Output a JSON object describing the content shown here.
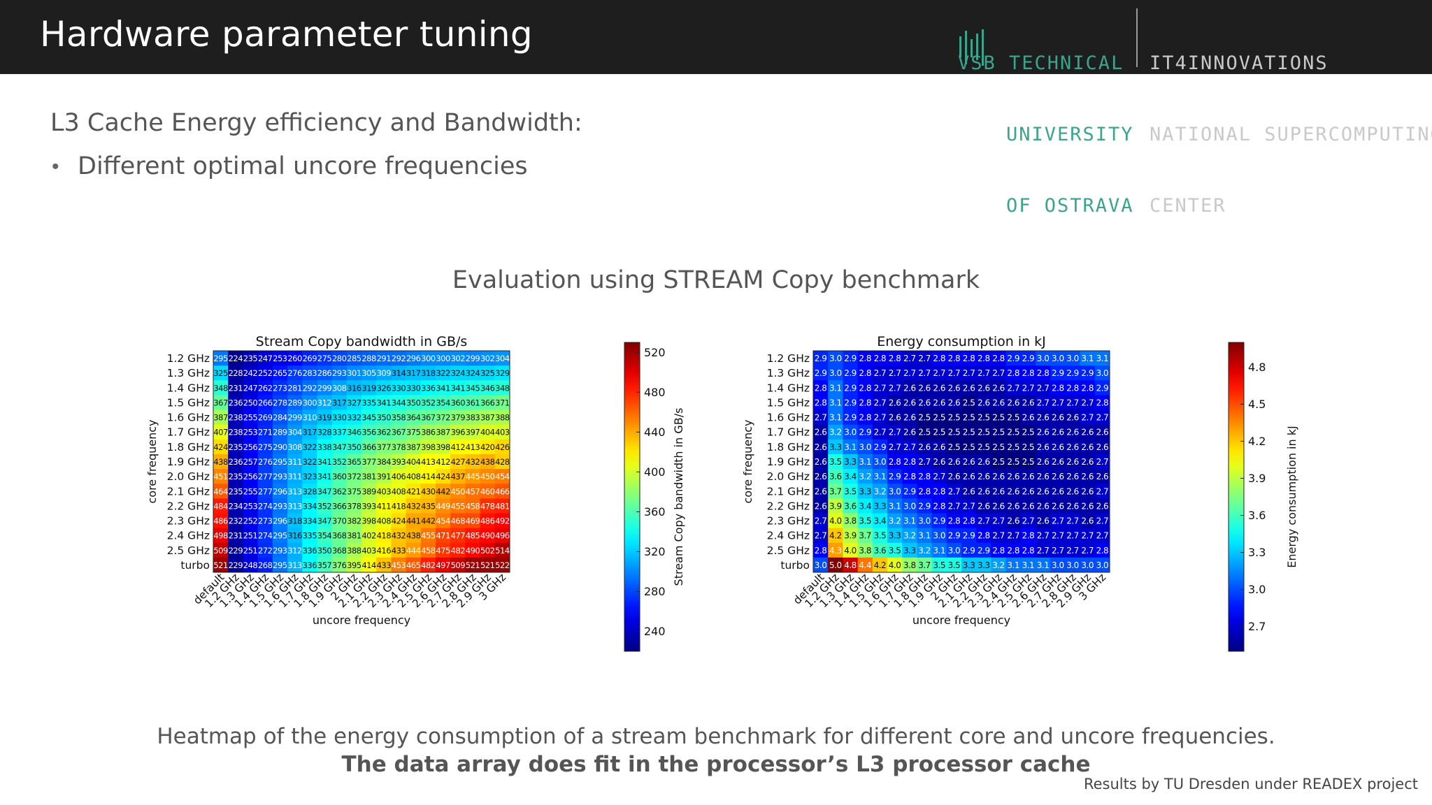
{
  "header": {
    "title": "Hardware parameter tuning",
    "logo_vsb": [
      "VSB TECHNICAL",
      "UNIVERSITY",
      "OF OSTRAVA"
    ],
    "logo_it4i": [
      "IT4INNOVATIONS",
      "NATIONAL SUPERCOMPUTING",
      "CENTER"
    ],
    "background": "#1e1e1e",
    "vsb_color": "#3aa58d"
  },
  "content": {
    "subtitle": "L3 Cache Energy efficiency and Bandwidth:",
    "bullet": "Different optimal uncore frequencies",
    "eval_title": "Evaluation using STREAM Copy benchmark",
    "caption_line1": "Heatmap of the energy consumption of a stream benchmark for different core and uncore frequencies.",
    "caption_line2": "The data array does fit in the processor’s L3 processor cache",
    "credit": "Results by TU Dresden under READEX project"
  },
  "chart_data": [
    {
      "type": "heatmap",
      "title": "Stream Copy bandwidth in GB/s",
      "xlabel": "uncore frequency",
      "ylabel": "core frequency",
      "colorbar_label": "Stream Copy bandwidth in GB/s",
      "colormap": "jet",
      "vmin": 220,
      "vmax": 530,
      "colorbar_ticks": [
        520,
        480,
        440,
        400,
        360,
        320,
        280,
        240
      ],
      "x_categories": [
        "default",
        "1.2 GHz",
        "1.3 GHz",
        "1.4 GHz",
        "1.5 GHz",
        "1.6 GHz",
        "1.7 GHz",
        "1.8 GHz",
        "1.9 GHz",
        "2 GHz",
        "2.1 GHz",
        "2.2 GHz",
        "2.3 GHz",
        "2.4 GHz",
        "2.5 GHz",
        "2.6 GHz",
        "2.7 GHz",
        "2.8 GHz",
        "2.9 GHz",
        "3 GHz"
      ],
      "y_categories": [
        "1.2 GHz",
        "1.3 GHz",
        "1.4 GHz",
        "1.5 GHz",
        "1.6 GHz",
        "1.7 GHz",
        "1.8 GHz",
        "1.9 GHz",
        "2.0 GHz",
        "2.1 GHz",
        "2.2 GHz",
        "2.3 GHz",
        "2.4 GHz",
        "2.5 GHz",
        "turbo"
      ],
      "values": [
        [
          295,
          224,
          235,
          247,
          253,
          260,
          269,
          275,
          280,
          285,
          288,
          291,
          292,
          296,
          300,
          300,
          302,
          299,
          302,
          304
        ],
        [
          325,
          228,
          242,
          252,
          265,
          276,
          283,
          286,
          293,
          301,
          305,
          309,
          314,
          317,
          318,
          322,
          324,
          324,
          325,
          329
        ],
        [
          348,
          231,
          247,
          262,
          273,
          281,
          292,
          299,
          308,
          316,
          319,
          326,
          330,
          330,
          336,
          341,
          341,
          345,
          346,
          348
        ],
        [
          367,
          236,
          250,
          266,
          278,
          289,
          300,
          312,
          317,
          327,
          335,
          341,
          344,
          350,
          352,
          354,
          360,
          361,
          366,
          371
        ],
        [
          387,
          238,
          255,
          269,
          284,
          299,
          310,
          319,
          330,
          332,
          345,
          350,
          358,
          364,
          367,
          372,
          379,
          383,
          387,
          388
        ],
        [
          407,
          238,
          253,
          271,
          289,
          304,
          317,
          328,
          337,
          346,
          356,
          362,
          367,
          375,
          386,
          387,
          396,
          397,
          404,
          403
        ],
        [
          424,
          235,
          256,
          275,
          290,
          308,
          322,
          338,
          347,
          350,
          366,
          377,
          378,
          387,
          398,
          398,
          412,
          413,
          420,
          426
        ],
        [
          438,
          236,
          257,
          276,
          295,
          311,
          322,
          341,
          352,
          365,
          377,
          384,
          393,
          404,
          413,
          412,
          427,
          432,
          438,
          428
        ],
        [
          451,
          235,
          256,
          277,
          293,
          311,
          323,
          341,
          360,
          372,
          381,
          391,
          406,
          408,
          414,
          424,
          437,
          445,
          450,
          454
        ],
        [
          464,
          235,
          255,
          277,
          296,
          313,
          328,
          347,
          362,
          375,
          389,
          403,
          408,
          421,
          430,
          442,
          450,
          457,
          460,
          466
        ],
        [
          484,
          234,
          253,
          274,
          293,
          313,
          334,
          352,
          366,
          378,
          393,
          411,
          418,
          432,
          435,
          449,
          455,
          458,
          478,
          481
        ],
        [
          486,
          232,
          252,
          273,
          296,
          318,
          334,
          347,
          370,
          382,
          398,
          408,
          424,
          441,
          442,
          454,
          468,
          469,
          486,
          492
        ],
        [
          498,
          231,
          251,
          274,
          295,
          316,
          335,
          354,
          368,
          381,
          402,
          418,
          432,
          438,
          455,
          471,
          477,
          485,
          490,
          496
        ],
        [
          509,
          229,
          251,
          272,
          293,
          312,
          336,
          350,
          368,
          388,
          403,
          416,
          433,
          444,
          458,
          475,
          482,
          490,
          502,
          514
        ],
        [
          521,
          229,
          248,
          268,
          295,
          313,
          336,
          357,
          376,
          395,
          414,
          433,
          453,
          465,
          482,
          497,
          509,
          521,
          521,
          522
        ]
      ]
    },
    {
      "type": "heatmap",
      "title": "Energy consumption in kJ",
      "xlabel": "uncore frequency",
      "ylabel": "core frequency",
      "colorbar_label": "Energy consumption in kJ",
      "colormap": "jet",
      "vmin": 2.5,
      "vmax": 5.0,
      "colorbar_ticks": [
        4.8,
        4.5,
        4.2,
        3.9,
        3.6,
        3.3,
        3.0,
        2.7
      ],
      "x_categories": [
        "default",
        "1.2 GHz",
        "1.3 GHz",
        "1.4 GHz",
        "1.5 GHz",
        "1.6 GHz",
        "1.7 GHz",
        "1.8 GHz",
        "1.9 GHz",
        "2 GHz",
        "2.1 GHz",
        "2.2 GHz",
        "2.3 GHz",
        "2.4 GHz",
        "2.5 GHz",
        "2.6 GHz",
        "2.7 GHz",
        "2.8 GHz",
        "2.9 GHz",
        "3 GHz"
      ],
      "y_categories": [
        "1.2 GHz",
        "1.3 GHz",
        "1.4 GHz",
        "1.5 GHz",
        "1.6 GHz",
        "1.7 GHz",
        "1.8 GHz",
        "1.9 GHz",
        "2.0 GHz",
        "2.1 GHz",
        "2.2 GHz",
        "2.3 GHz",
        "2.4 GHz",
        "2.5 GHz",
        "turbo"
      ],
      "values": [
        [
          2.9,
          3.0,
          2.9,
          2.8,
          2.8,
          2.8,
          2.7,
          2.7,
          2.8,
          2.8,
          2.8,
          2.8,
          2.8,
          2.9,
          2.9,
          3.0,
          3.0,
          3.0,
          3.1,
          3.1
        ],
        [
          2.9,
          3.0,
          2.9,
          2.8,
          2.7,
          2.7,
          2.7,
          2.7,
          2.7,
          2.7,
          2.7,
          2.7,
          2.7,
          2.8,
          2.8,
          2.8,
          2.9,
          2.9,
          2.9,
          3.0
        ],
        [
          2.8,
          3.1,
          2.9,
          2.8,
          2.7,
          2.7,
          2.6,
          2.6,
          2.6,
          2.6,
          2.6,
          2.6,
          2.6,
          2.7,
          2.7,
          2.7,
          2.8,
          2.8,
          2.8,
          2.9
        ],
        [
          2.8,
          3.1,
          2.9,
          2.8,
          2.7,
          2.6,
          2.6,
          2.6,
          2.6,
          2.6,
          2.5,
          2.6,
          2.6,
          2.6,
          2.6,
          2.7,
          2.7,
          2.7,
          2.7,
          2.8
        ],
        [
          2.7,
          3.1,
          2.9,
          2.8,
          2.7,
          2.6,
          2.6,
          2.5,
          2.5,
          2.5,
          2.5,
          2.5,
          2.5,
          2.5,
          2.6,
          2.6,
          2.6,
          2.6,
          2.7,
          2.7
        ],
        [
          2.6,
          3.2,
          3.0,
          2.9,
          2.7,
          2.7,
          2.6,
          2.5,
          2.5,
          2.5,
          2.5,
          2.5,
          2.5,
          2.5,
          2.5,
          2.6,
          2.6,
          2.6,
          2.6,
          2.6
        ],
        [
          2.6,
          3.3,
          3.1,
          3.0,
          2.9,
          2.7,
          2.7,
          2.6,
          2.6,
          2.5,
          2.5,
          2.5,
          2.5,
          2.5,
          2.5,
          2.6,
          2.6,
          2.6,
          2.6,
          2.6
        ],
        [
          2.6,
          3.5,
          3.3,
          3.1,
          3.0,
          2.8,
          2.8,
          2.7,
          2.6,
          2.6,
          2.6,
          2.6,
          2.5,
          2.5,
          2.5,
          2.6,
          2.6,
          2.6,
          2.6,
          2.7
        ],
        [
          2.6,
          3.6,
          3.4,
          3.2,
          3.1,
          2.9,
          2.8,
          2.8,
          2.7,
          2.6,
          2.6,
          2.6,
          2.6,
          2.6,
          2.6,
          2.6,
          2.6,
          2.6,
          2.6,
          2.6
        ],
        [
          2.6,
          3.7,
          3.5,
          3.3,
          3.2,
          3.0,
          2.9,
          2.8,
          2.8,
          2.7,
          2.6,
          2.6,
          2.6,
          2.6,
          2.6,
          2.6,
          2.6,
          2.6,
          2.6,
          2.7
        ],
        [
          2.6,
          3.9,
          3.6,
          3.4,
          3.3,
          3.1,
          3.0,
          2.9,
          2.8,
          2.7,
          2.7,
          2.6,
          2.6,
          2.6,
          2.6,
          2.6,
          2.6,
          2.6,
          2.6,
          2.6
        ],
        [
          2.7,
          4.0,
          3.8,
          3.5,
          3.4,
          3.2,
          3.1,
          3.0,
          2.9,
          2.8,
          2.8,
          2.7,
          2.7,
          2.6,
          2.7,
          2.6,
          2.7,
          2.7,
          2.6,
          2.7
        ],
        [
          2.7,
          4.2,
          3.9,
          3.7,
          3.5,
          3.3,
          3.2,
          3.1,
          3.0,
          2.9,
          2.9,
          2.8,
          2.7,
          2.7,
          2.8,
          2.7,
          2.7,
          2.7,
          2.7,
          2.7
        ],
        [
          2.8,
          4.3,
          4.0,
          3.8,
          3.6,
          3.5,
          3.3,
          3.2,
          3.1,
          3.0,
          2.9,
          2.9,
          2.8,
          2.8,
          2.8,
          2.7,
          2.7,
          2.7,
          2.7,
          2.8
        ],
        [
          3.0,
          5.0,
          4.8,
          4.4,
          4.2,
          4.0,
          3.8,
          3.7,
          3.5,
          3.5,
          3.3,
          3.3,
          3.2,
          3.1,
          3.1,
          3.1,
          3.0,
          3.0,
          3.0,
          3.0
        ]
      ]
    }
  ]
}
